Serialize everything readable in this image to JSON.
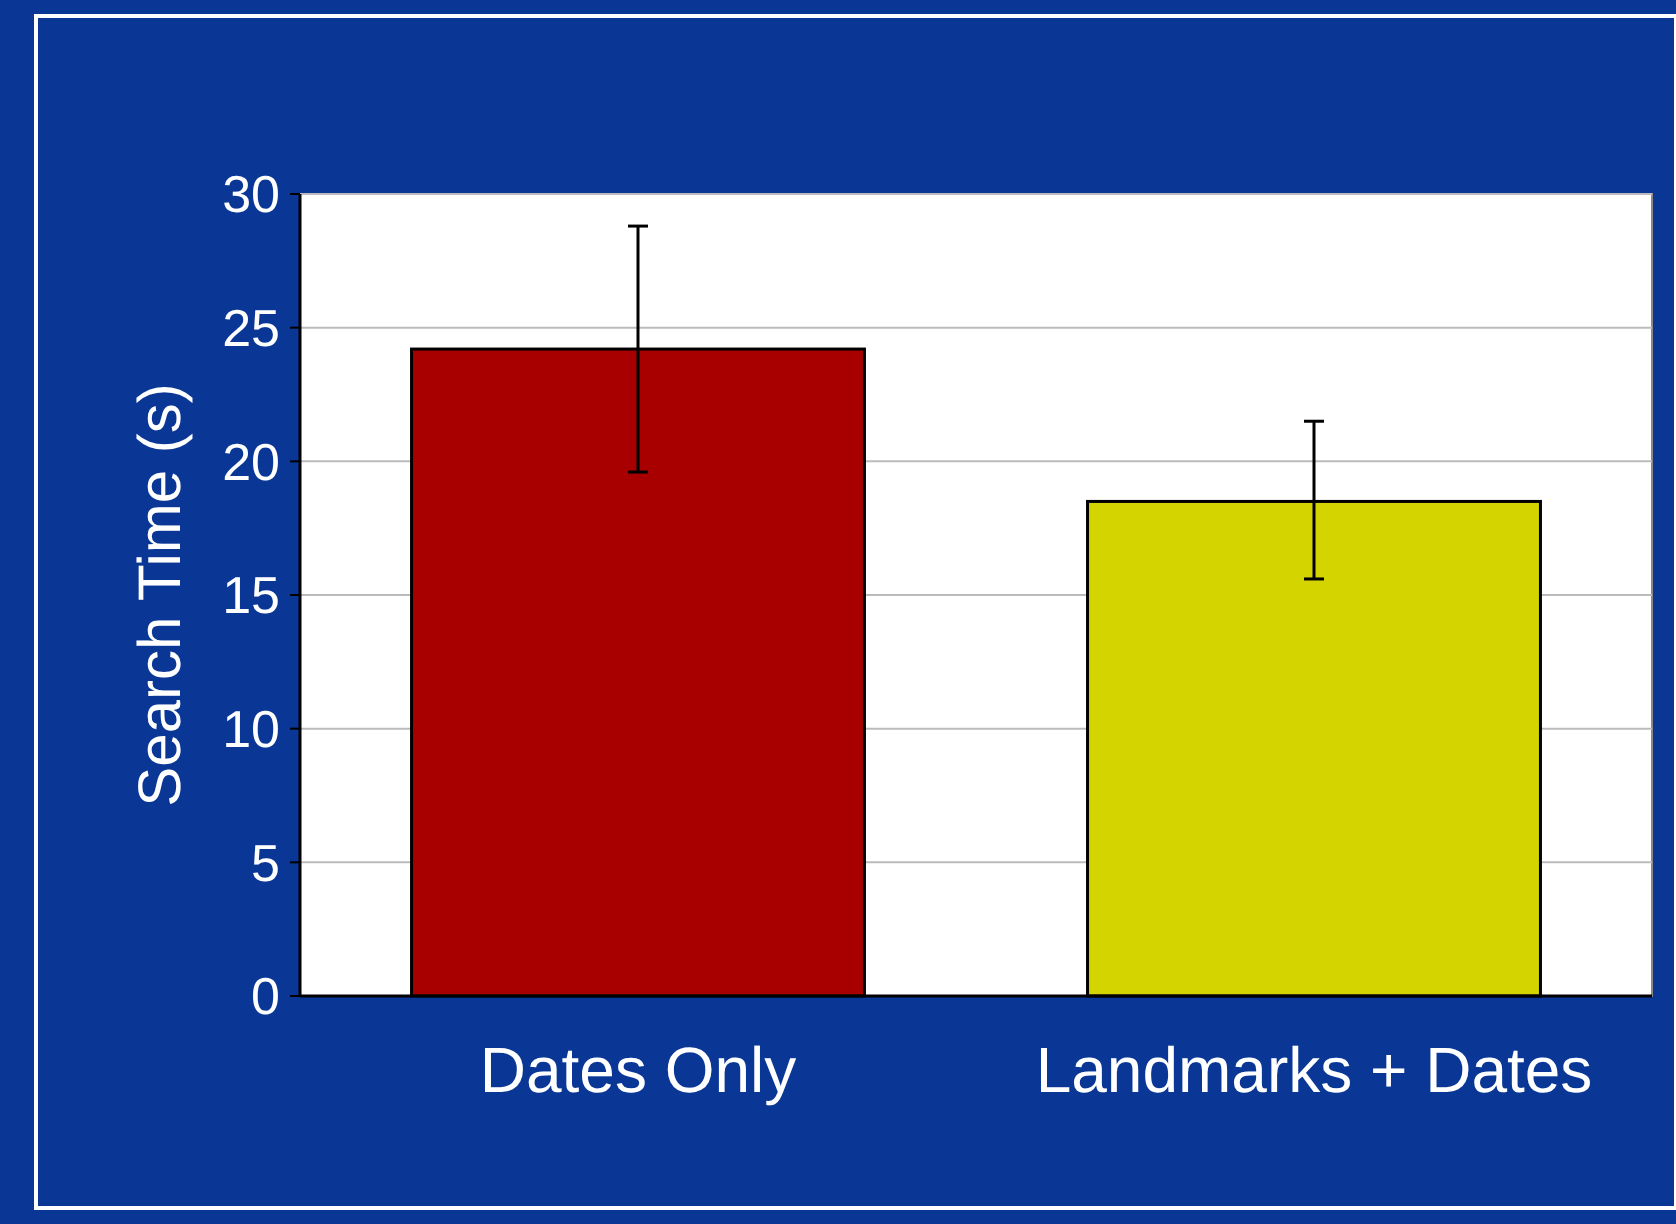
{
  "chart_data": {
    "type": "bar",
    "ylabel": "Search Time (s)",
    "categories": [
      "Dates Only",
      "Landmarks + Dates"
    ],
    "values": [
      24.2,
      18.5
    ],
    "colors": [
      "#a80000",
      "#d4d400"
    ],
    "errors": [
      [
        19.6,
        28.8
      ],
      [
        15.6,
        21.5
      ]
    ],
    "ylim": [
      0,
      30
    ],
    "yticks": [
      0,
      5,
      10,
      15,
      20,
      25,
      30
    ],
    "grid": "y"
  }
}
